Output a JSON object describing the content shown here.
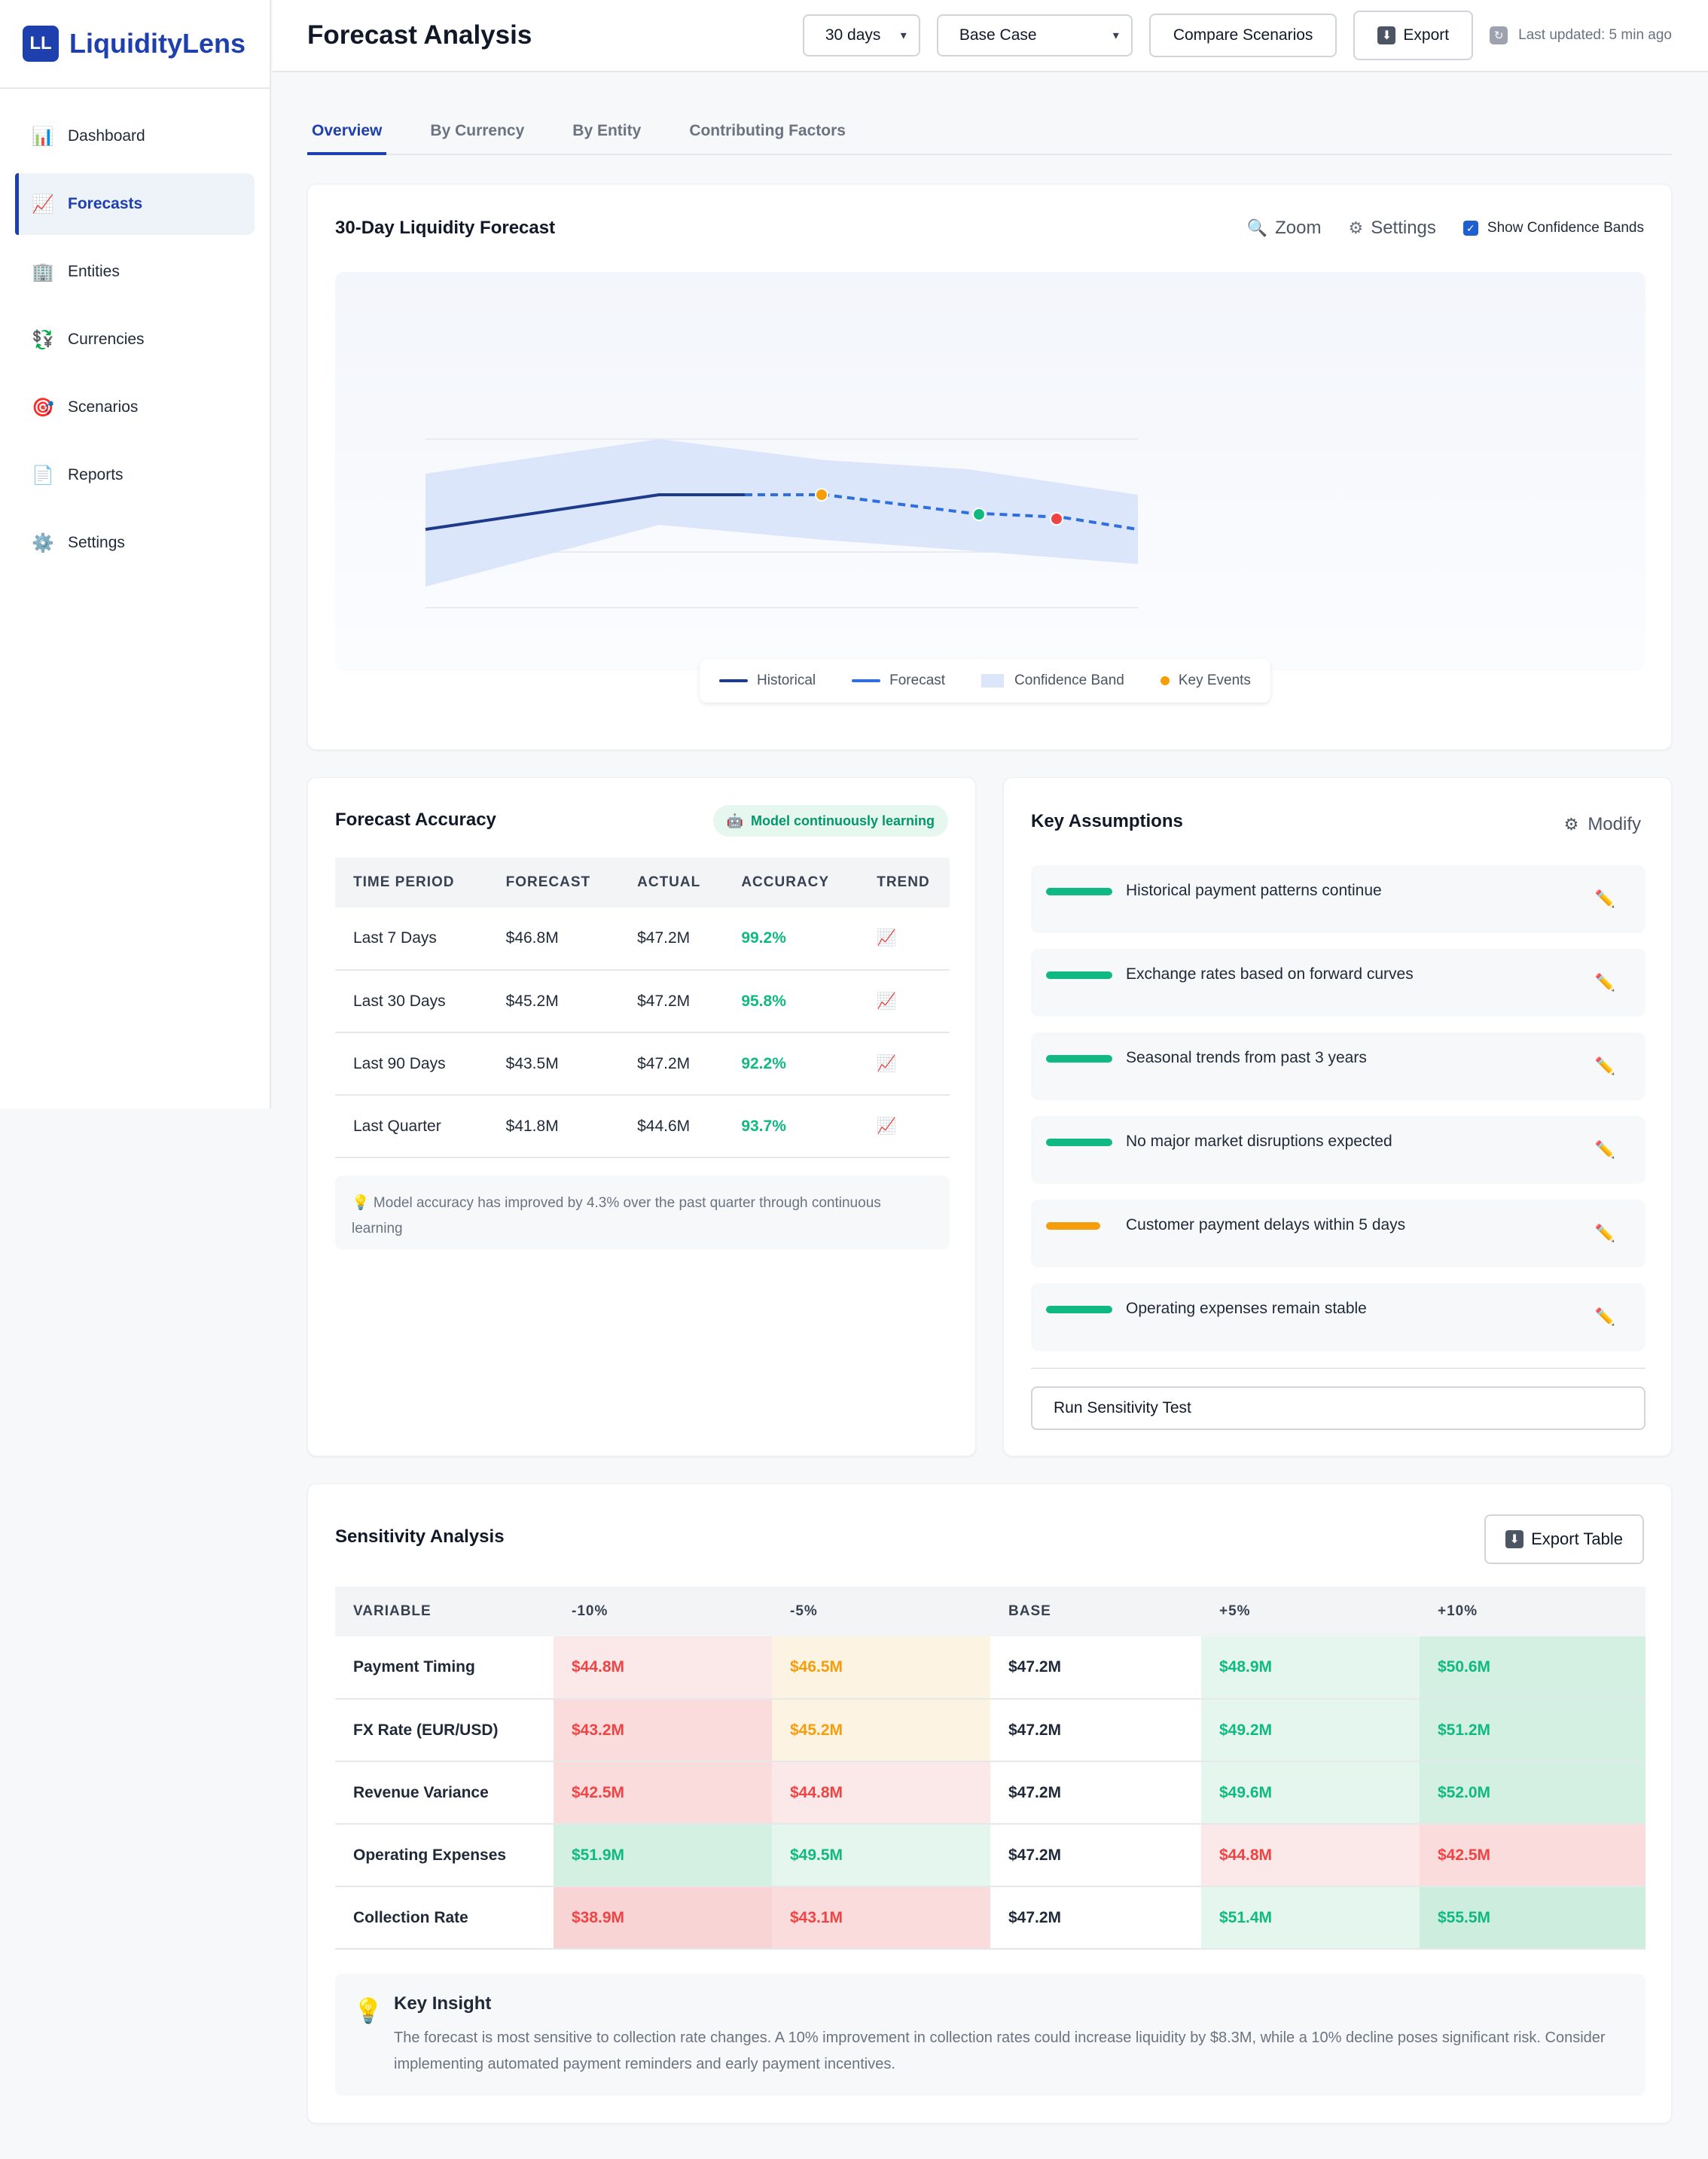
{
  "brand": {
    "logo": "LL",
    "name": "LiquidityLens"
  },
  "sidebar": {
    "items": [
      {
        "label": "Dashboard",
        "icon": "📊",
        "icon_name": "bar-chart-icon",
        "active": false
      },
      {
        "label": "Forecasts",
        "icon": "📈",
        "icon_name": "trend-chart-icon",
        "active": true
      },
      {
        "label": "Entities",
        "icon": "🏢",
        "icon_name": "building-icon",
        "active": false
      },
      {
        "label": "Currencies",
        "icon": "💱",
        "icon_name": "currency-exchange-icon",
        "active": false
      },
      {
        "label": "Scenarios",
        "icon": "🎯",
        "icon_name": "target-icon",
        "active": false
      },
      {
        "label": "Reports",
        "icon": "📄",
        "icon_name": "document-icon",
        "active": false
      },
      {
        "label": "Settings",
        "icon": "⚙️",
        "icon_name": "gear-icon",
        "active": false
      }
    ]
  },
  "header": {
    "title": "Forecast Analysis",
    "range_select": "30 days",
    "scenario_select": "Base Case",
    "compare_label": "Compare Scenarios",
    "export_label": "Export",
    "updated": "Last updated: 5 min ago"
  },
  "tabs": [
    {
      "label": "Overview",
      "active": true
    },
    {
      "label": "By Currency",
      "active": false
    },
    {
      "label": "By Entity",
      "active": false
    },
    {
      "label": "Contributing Factors",
      "active": false
    }
  ],
  "forecast_chart": {
    "title": "30-Day Liquidity Forecast",
    "zoom_label": "Zoom",
    "settings_label": "Settings",
    "bands_label": "Show Confidence Bands",
    "bands_checked": true,
    "legend": {
      "historical": "Historical",
      "forecast": "Forecast",
      "band": "Confidence Band",
      "events": "Key Events"
    },
    "colors": {
      "historical": "#1e3a8a",
      "forecast": "#2f6fde",
      "band": "#dbe6fb",
      "event_orange": "#f59e0b",
      "event_green": "#10b981",
      "event_red": "#ef4444"
    }
  },
  "accuracy": {
    "title": "Forecast Accuracy",
    "badge": "Model continuously learning",
    "headers": [
      "TIME PERIOD",
      "FORECAST",
      "ACTUAL",
      "ACCURACY",
      "TREND"
    ],
    "rows": [
      {
        "period": "Last 7 Days",
        "forecast": "$46.8M",
        "actual": "$47.2M",
        "accuracy": "99.2%",
        "trend": "📈"
      },
      {
        "period": "Last 30 Days",
        "forecast": "$45.2M",
        "actual": "$47.2M",
        "accuracy": "95.8%",
        "trend": "📈"
      },
      {
        "period": "Last 90 Days",
        "forecast": "$43.5M",
        "actual": "$47.2M",
        "accuracy": "92.2%",
        "trend": "📈"
      },
      {
        "period": "Last Quarter",
        "forecast": "$41.8M",
        "actual": "$44.6M",
        "accuracy": "93.7%",
        "trend": "📈"
      }
    ],
    "note": "💡 Model accuracy has improved by 4.3% over the past quarter through continuous learning"
  },
  "assumptions": {
    "title": "Key Assumptions",
    "modify_label": "Modify",
    "items": [
      {
        "text": "Historical payment patterns continue",
        "status": "green"
      },
      {
        "text": "Exchange rates based on forward curves",
        "status": "green"
      },
      {
        "text": "Seasonal trends from past 3 years",
        "status": "green"
      },
      {
        "text": "No major market disruptions expected",
        "status": "green"
      },
      {
        "text": "Customer payment delays within 5 days",
        "status": "amber"
      },
      {
        "text": "Operating expenses remain stable",
        "status": "green"
      }
    ],
    "status_colors": {
      "green": "#10b981",
      "amber": "#f59e0b"
    },
    "run_label": "Run Sensitivity Test"
  },
  "sensitivity": {
    "title": "Sensitivity Analysis",
    "export_label": "Export Table",
    "headers": [
      "VARIABLE",
      "-10%",
      "-5%",
      "BASE",
      "+5%",
      "+10%"
    ],
    "rows": [
      {
        "variable": "Payment Timing",
        "cells": [
          {
            "v": "$44.8M",
            "tone": "neg-light"
          },
          {
            "v": "$46.5M",
            "tone": "warn"
          },
          {
            "v": "$47.2M",
            "tone": "base"
          },
          {
            "v": "$48.9M",
            "tone": "pos-light"
          },
          {
            "v": "$50.6M",
            "tone": "pos"
          }
        ]
      },
      {
        "variable": "FX Rate (EUR/USD)",
        "cells": [
          {
            "v": "$43.2M",
            "tone": "neg"
          },
          {
            "v": "$45.2M",
            "tone": "warn"
          },
          {
            "v": "$47.2M",
            "tone": "base"
          },
          {
            "v": "$49.2M",
            "tone": "pos-light"
          },
          {
            "v": "$51.2M",
            "tone": "pos"
          }
        ]
      },
      {
        "variable": "Revenue Variance",
        "cells": [
          {
            "v": "$42.5M",
            "tone": "neg"
          },
          {
            "v": "$44.8M",
            "tone": "neg-light"
          },
          {
            "v": "$47.2M",
            "tone": "base"
          },
          {
            "v": "$49.6M",
            "tone": "pos-light"
          },
          {
            "v": "$52.0M",
            "tone": "pos"
          }
        ]
      },
      {
        "variable": "Operating Expenses",
        "cells": [
          {
            "v": "$51.9M",
            "tone": "pos"
          },
          {
            "v": "$49.5M",
            "tone": "pos-light"
          },
          {
            "v": "$47.2M",
            "tone": "base"
          },
          {
            "v": "$44.8M",
            "tone": "neg-light"
          },
          {
            "v": "$42.5M",
            "tone": "neg"
          }
        ]
      },
      {
        "variable": "Collection Rate",
        "cells": [
          {
            "v": "$38.9M",
            "tone": "neg-strong"
          },
          {
            "v": "$43.1M",
            "tone": "neg"
          },
          {
            "v": "$47.2M",
            "tone": "base"
          },
          {
            "v": "$51.4M",
            "tone": "pos-light"
          },
          {
            "v": "$55.5M",
            "tone": "pos-strong"
          }
        ]
      }
    ],
    "tones": {
      "neg-strong": {
        "bg": "#f9d4d4",
        "fg": "#ef4444"
      },
      "neg": {
        "bg": "#fadcdc",
        "fg": "#ef4444"
      },
      "neg-light": {
        "bg": "#fbe8e8",
        "fg": "#ef4444"
      },
      "warn": {
        "bg": "#fdf3e2",
        "fg": "#f59e0b"
      },
      "base": {
        "bg": "#ffffff",
        "fg": "#1f2937"
      },
      "pos-light": {
        "bg": "#e4f6ee",
        "fg": "#10b981"
      },
      "pos": {
        "bg": "#d3f0e3",
        "fg": "#10b981"
      },
      "pos-strong": {
        "bg": "#cdeedf",
        "fg": "#10b981"
      }
    },
    "insight_title": "Key Insight",
    "insight_text": "The forecast is most sensitive to collection rate changes. A 10% improvement in collection rates could increase liquidity by $8.3M, while a 10% decline poses significant risk. Consider implementing automated payment reminders and early payment incentives."
  }
}
